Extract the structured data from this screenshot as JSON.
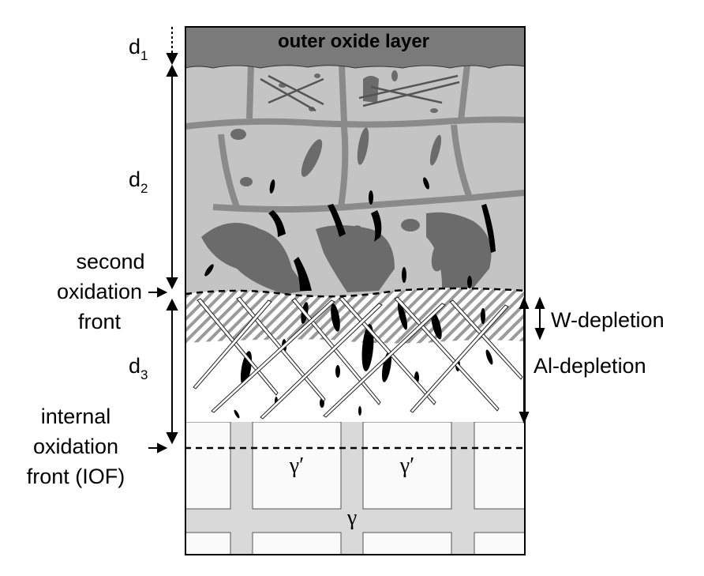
{
  "layers": {
    "outer_oxide": "outer oxide layer"
  },
  "dimensions": {
    "d1": {
      "main": "d",
      "sub": "1"
    },
    "d2": {
      "main": "d",
      "sub": "2"
    },
    "d3": {
      "main": "d",
      "sub": "3"
    }
  },
  "fronts": {
    "second": [
      "second",
      "oxidation",
      "front"
    ],
    "internal": [
      "internal",
      "oxidation",
      "front (IOF)"
    ]
  },
  "depletion": {
    "w": "W-depletion",
    "al": "Al-depletion"
  },
  "phases": {
    "gamma_prime": "γ′",
    "gamma": "γ"
  },
  "colors": {
    "outer_oxide": "#7a7a7a",
    "grain": "#c4c4c4",
    "boundary": "#8a8a8a",
    "dark_inclusion": "#6b6b6b",
    "black_inclusion": "#000000",
    "gamma_matrix": "#d9d9d9",
    "gamma_prime": "#fafafa",
    "hatch": "#9a9a9a"
  }
}
